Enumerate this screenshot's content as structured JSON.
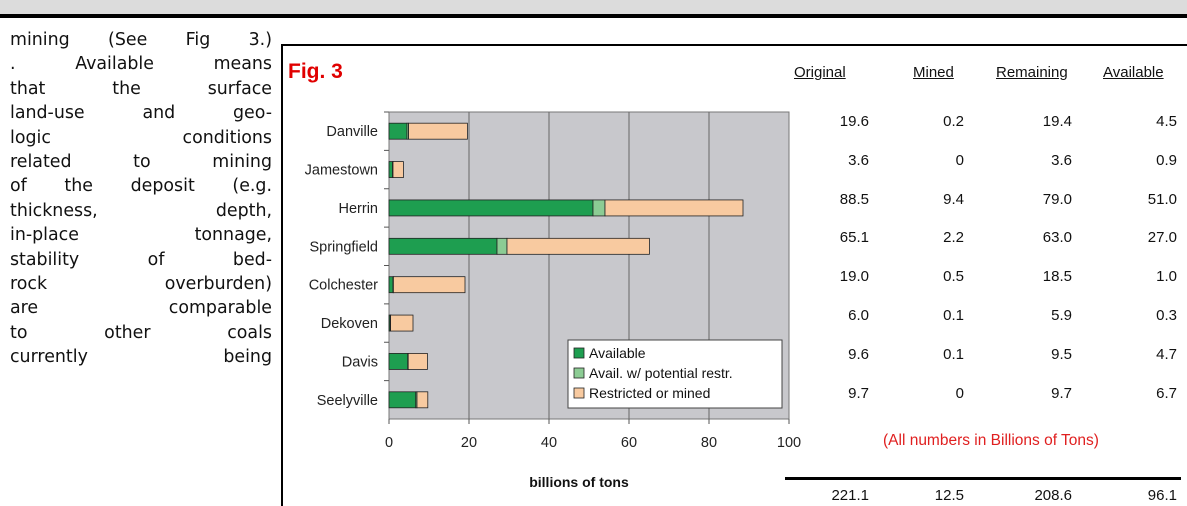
{
  "body_text": {
    "lines": [
      "mining (See Fig 3.)",
      ". Available means",
      "that the surface",
      "land-use and geo-",
      "logic conditions",
      "related to mining",
      "of the deposit (e.g.",
      "thickness, depth,",
      "in-place tonnage,",
      "stability of bed-",
      "rock overburden)",
      "are comparable",
      "to other coals",
      "currently being"
    ]
  },
  "figure": {
    "label": "Fig. 3"
  },
  "chart_data": {
    "type": "bar",
    "orientation": "horizontal",
    "stacked": true,
    "categories": [
      "Danville",
      "Jamestown",
      "Herrin",
      "Springfield",
      "Colchester",
      "Dekoven",
      "Davis",
      "Seelyville"
    ],
    "series": [
      {
        "name": "Available",
        "color": "#1e9e50",
        "values": [
          4.5,
          0.9,
          51.0,
          27.0,
          1.0,
          0.3,
          4.7,
          6.7
        ]
      },
      {
        "name": "Avail. w/ potential restr.",
        "color": "#8ccc94",
        "values": [
          0.4,
          0.1,
          3.0,
          2.5,
          0.1,
          0.1,
          0.1,
          0.3
        ]
      },
      {
        "name": "Restricted or mined",
        "color": "#f8caa0",
        "values": [
          14.7,
          2.6,
          34.5,
          35.6,
          17.9,
          5.6,
          4.8,
          2.7
        ]
      }
    ],
    "xlabel": "billions of tons",
    "xlim": [
      0,
      100
    ],
    "xticks": [
      "0",
      "20",
      "40",
      "60",
      "80",
      "100"
    ],
    "grid": true,
    "plot_background": "#c8c8cc",
    "legend_position": "bottom-right"
  },
  "table": {
    "headers": [
      "Original",
      "Mined",
      "Remaining",
      "Available"
    ],
    "rows": [
      [
        "19.6",
        "0.2",
        "19.4",
        "4.5"
      ],
      [
        "3.6",
        "0",
        "3.6",
        "0.9"
      ],
      [
        "88.5",
        "9.4",
        "79.0",
        "51.0"
      ],
      [
        "65.1",
        "2.2",
        "63.0",
        "27.0"
      ],
      [
        "19.0",
        "0.5",
        "18.5",
        "1.0"
      ],
      [
        "6.0",
        "0.1",
        "5.9",
        "0.3"
      ],
      [
        "9.6",
        "0.1",
        "9.5",
        "4.7"
      ],
      [
        "9.7",
        "0",
        "9.7",
        "6.7"
      ]
    ],
    "note": "(All numbers in Billions of Tons)",
    "totals": [
      "221.1",
      "12.5",
      "208.6",
      "96.1"
    ]
  }
}
